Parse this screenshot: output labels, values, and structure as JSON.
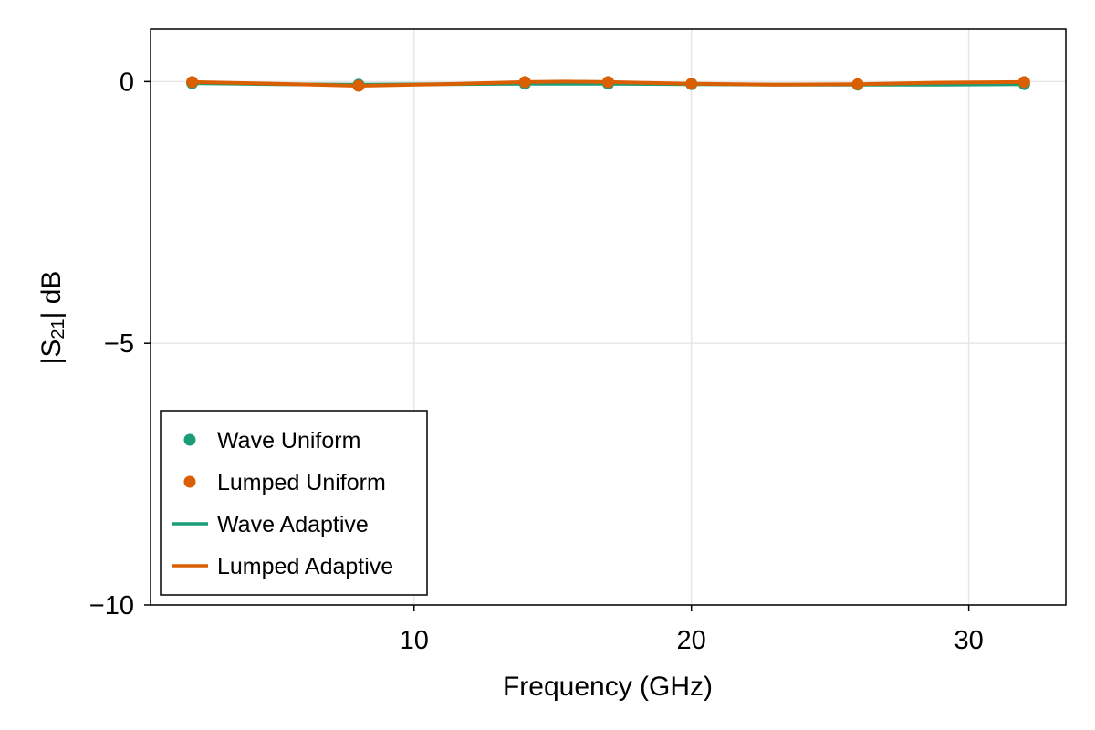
{
  "chart_data": {
    "type": "line",
    "xlabel": "Frequency (GHz)",
    "ylabel_main": "|S",
    "ylabel_sub": "21",
    "ylabel_tail": "| dB",
    "xlim": [
      0.5,
      33.5
    ],
    "ylim": [
      -10,
      1
    ],
    "x_ticks": [
      10,
      20,
      30
    ],
    "y_ticks": [
      0,
      -5,
      -10
    ],
    "y_tick_labels": [
      "0",
      "−5",
      "−10"
    ],
    "grid": true,
    "legend_position": "bottom-left",
    "series": [
      {
        "name": "Wave Uniform",
        "kind": "scatter",
        "color": "#1b9e77",
        "x": [
          2,
          8,
          14,
          17,
          20,
          26,
          32
        ],
        "y": [
          -0.03,
          -0.06,
          -0.04,
          -0.04,
          -0.05,
          -0.06,
          -0.05
        ]
      },
      {
        "name": "Lumped Uniform",
        "kind": "scatter",
        "color": "#d95f02",
        "x": [
          2,
          8,
          14,
          17,
          20,
          26,
          32
        ],
        "y": [
          -0.01,
          -0.08,
          -0.01,
          -0.01,
          -0.04,
          -0.05,
          -0.01
        ]
      },
      {
        "name": "Wave Adaptive",
        "kind": "line",
        "color": "#1b9e77",
        "x": [
          2,
          5,
          8,
          11,
          14,
          17,
          20,
          23,
          26,
          29,
          32
        ],
        "y": [
          -0.03,
          -0.05,
          -0.06,
          -0.05,
          -0.04,
          -0.04,
          -0.05,
          -0.06,
          -0.06,
          -0.06,
          -0.05
        ]
      },
      {
        "name": "Lumped Adaptive",
        "kind": "line",
        "color": "#d95f02",
        "x": [
          2,
          5,
          8,
          11,
          14,
          15.5,
          17,
          20,
          23,
          26,
          29,
          32
        ],
        "y": [
          -0.01,
          -0.04,
          -0.08,
          -0.05,
          -0.01,
          0.0,
          -0.01,
          -0.04,
          -0.06,
          -0.05,
          -0.02,
          -0.01
        ]
      }
    ]
  }
}
